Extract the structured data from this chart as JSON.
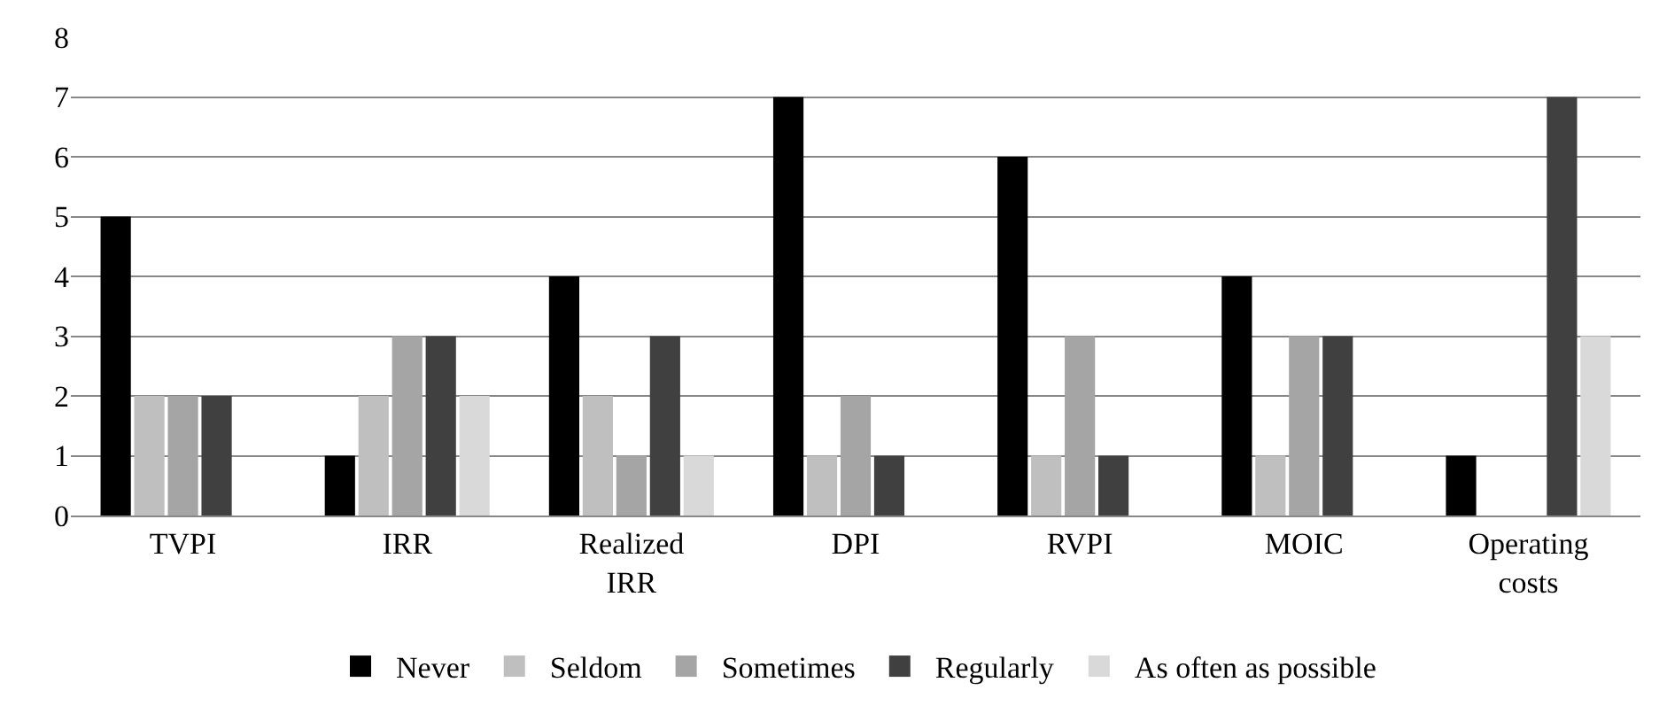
{
  "chart_data": {
    "type": "bar",
    "categories": [
      "TVPI",
      "IRR",
      "Realized IRR",
      "DPI",
      "RVPI",
      "MOIC",
      "Operating costs"
    ],
    "series": [
      {
        "name": "Never",
        "color": "#000000",
        "values": [
          5,
          1,
          4,
          7,
          6,
          4,
          1
        ]
      },
      {
        "name": "Seldom",
        "color": "#bfbfbf",
        "values": [
          2,
          2,
          2,
          1,
          1,
          1,
          0
        ]
      },
      {
        "name": "Sometimes",
        "color": "#a5a5a5",
        "values": [
          2,
          3,
          1,
          2,
          3,
          3,
          0
        ]
      },
      {
        "name": "Regularly",
        "color": "#404040",
        "values": [
          2,
          3,
          3,
          1,
          1,
          3,
          7
        ]
      },
      {
        "name": "As often as possible",
        "color": "#d9d9d9",
        "values": [
          0,
          2,
          1,
          0,
          0,
          0,
          3
        ]
      }
    ],
    "ylim": [
      0,
      8
    ],
    "yticks": [
      0,
      1,
      2,
      3,
      4,
      5,
      6,
      7,
      8
    ],
    "grid": "y",
    "legend": "bottom"
  }
}
